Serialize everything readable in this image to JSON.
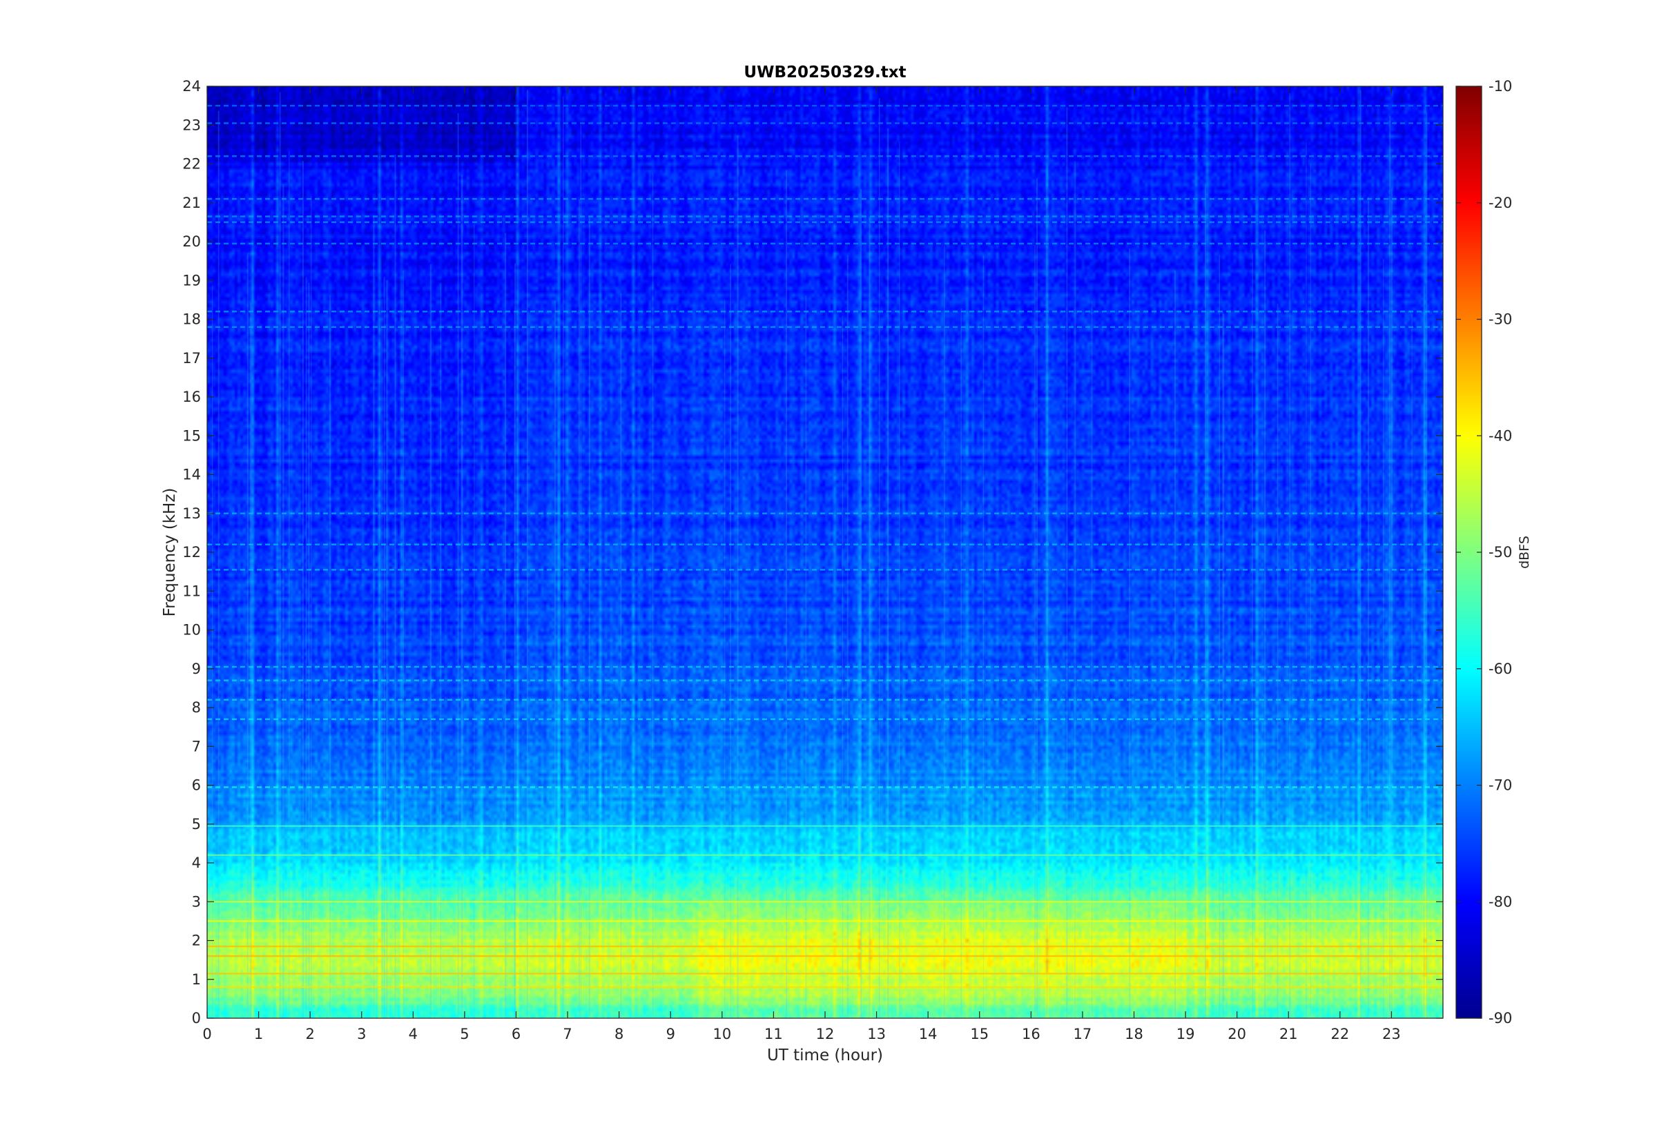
{
  "chart_data": {
    "type": "heatmap",
    "title": "UWB20250329.txt",
    "xlabel": "UT time (hour)",
    "ylabel": "Frequency (kHz)",
    "xlim": [
      0,
      24
    ],
    "ylim": [
      0,
      24
    ],
    "x_ticks": [
      "0",
      "1",
      "2",
      "3",
      "4",
      "5",
      "6",
      "7",
      "8",
      "9",
      "10",
      "11",
      "12",
      "13",
      "14",
      "15",
      "16",
      "17",
      "18",
      "19",
      "20",
      "21",
      "22",
      "23"
    ],
    "y_ticks": [
      "0",
      "1",
      "2",
      "3",
      "4",
      "5",
      "6",
      "7",
      "8",
      "9",
      "10",
      "11",
      "12",
      "13",
      "14",
      "15",
      "16",
      "17",
      "18",
      "19",
      "20",
      "21",
      "22",
      "23",
      "24"
    ],
    "colorbar": {
      "label": "dBFS",
      "colormap": "jet",
      "range": [
        -90,
        -10
      ],
      "ticks": [
        "-10",
        "-20",
        "-30",
        "-40",
        "-50",
        "-60",
        "-70",
        "-80",
        "-90"
      ]
    },
    "level_profile": {
      "frequency_khz": [
        0,
        0.5,
        1,
        1.5,
        2,
        2.5,
        3,
        3.5,
        4,
        4.5,
        5,
        6,
        7,
        8,
        9,
        10,
        12,
        14,
        16,
        18,
        20,
        21,
        22,
        23,
        24
      ],
      "typical_dbfs": [
        -58,
        -50,
        -46,
        -44,
        -45,
        -50,
        -52,
        -58,
        -61,
        -63,
        -66,
        -69,
        -71,
        -72,
        -73,
        -74,
        -75,
        -76,
        -76,
        -77,
        -78,
        -77,
        -79,
        -80,
        -81
      ]
    },
    "narrowband_lines_khz": [
      0.8,
      1.15,
      1.6,
      1.85,
      2.5,
      3.0,
      4.2,
      4.95,
      5.95,
      7.7,
      8.2,
      8.7,
      9.05,
      11.55,
      12.2,
      13.0,
      17.8,
      18.2,
      19.95,
      20.5,
      20.65,
      21.1,
      22.2,
      23.05,
      23.5
    ]
  }
}
